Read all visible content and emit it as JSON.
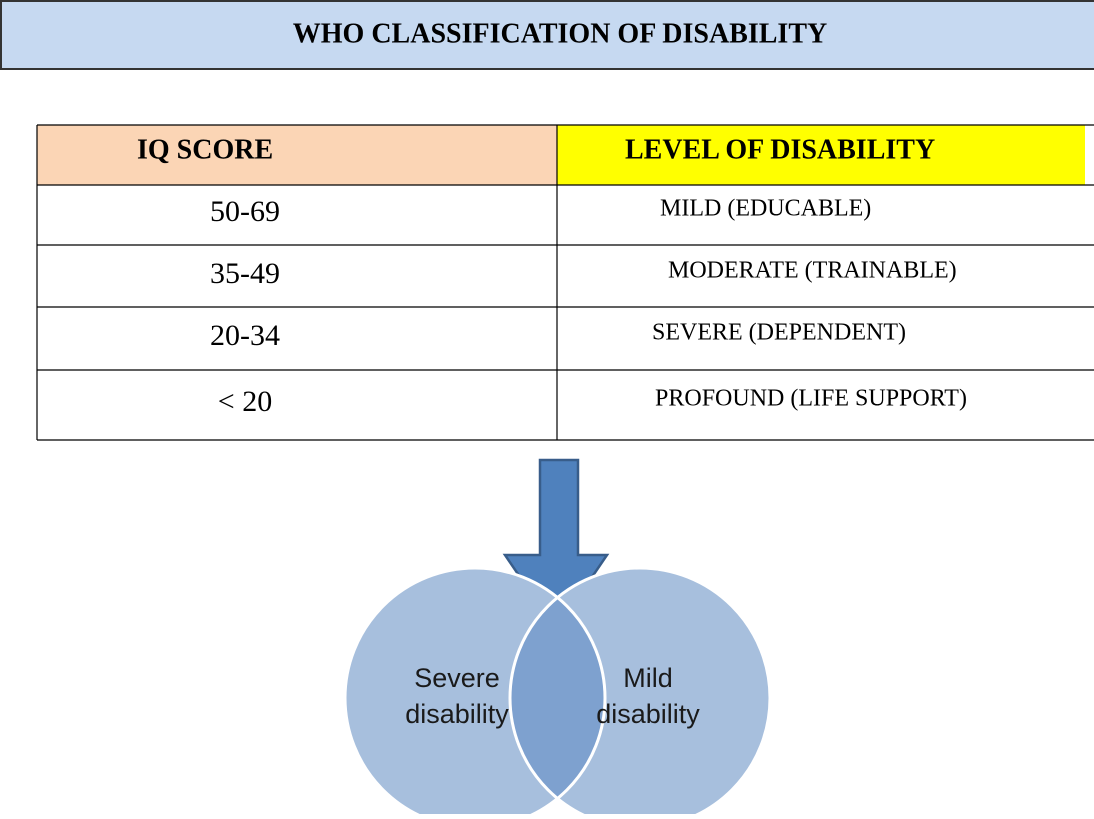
{
  "header": {
    "title": "WHO CLASSIFICATION OF DISABILITY"
  },
  "table": {
    "columns": [
      "IQ SCORE",
      "LEVEL OF DISABILITY"
    ],
    "rows": [
      [
        "50-69",
        "MILD (EDUCABLE)"
      ],
      [
        "35-49",
        "MODERATE (TRAINABLE)"
      ],
      [
        "20-34",
        "SEVERE (DEPENDENT)"
      ],
      [
        "< 20",
        "PROFOUND (LIFE SUPPORT)"
      ]
    ]
  },
  "diagram": {
    "circles": [
      {
        "label": [
          "Severe",
          "disability"
        ]
      },
      {
        "label": [
          "Mild",
          "disability"
        ]
      }
    ]
  }
}
